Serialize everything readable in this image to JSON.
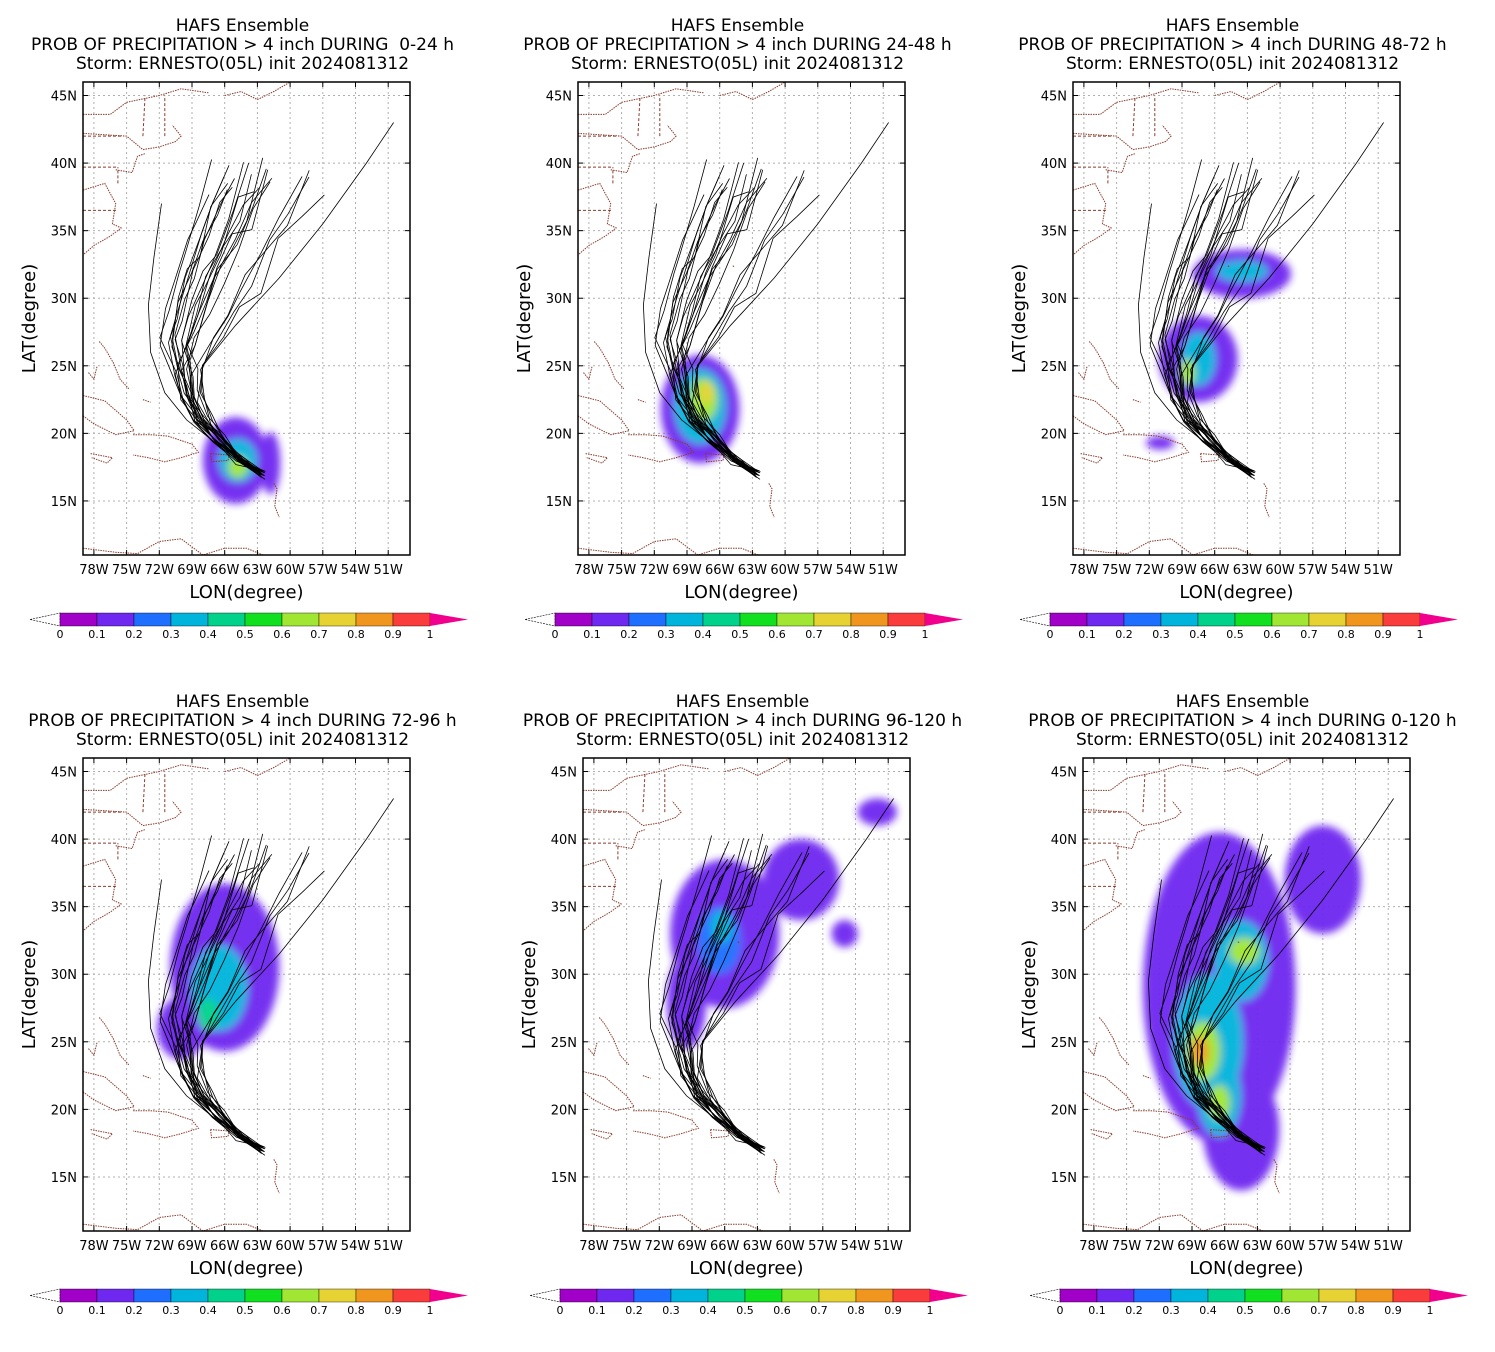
{
  "figure": {
    "colorbar": {
      "ticks": [
        "0",
        "0.1",
        "0.2",
        "0.3",
        "0.4",
        "0.5",
        "0.6",
        "0.7",
        "0.8",
        "0.9",
        "1"
      ],
      "colors": [
        "#a000c8",
        "#6e28f0",
        "#1e6eff",
        "#00b4dc",
        "#00d28c",
        "#10e020",
        "#a0e632",
        "#e6d232",
        "#f0961e",
        "#fa3c3c"
      ],
      "over_color": "#f0008c"
    },
    "coast_color": "#8b3a2a",
    "track_color": "#000000",
    "panels": [
      {
        "title": [
          "HAFS Ensemble",
          "PROB OF PRECIPITATION > 4 inch DURING  0-24 h",
          "Storm: ERNESTO(05L) init 2024081312"
        ],
        "xlabel": "LON(degree)",
        "ylabel": "LAT(degree)",
        "xticks": [
          "78W",
          "75W",
          "72W",
          "69W",
          "66W",
          "63W",
          "60W",
          "57W",
          "54W",
          "51W"
        ],
        "yticks": [
          "15N",
          "20N",
          "25N",
          "30N",
          "35N",
          "40N",
          "45N"
        ],
        "chart_data": {
          "type": "heatmap",
          "field": "probability of precipitation > 4 inch",
          "period_h": [
            0,
            24
          ],
          "xlim": [
            -79,
            -49
          ],
          "ylim": [
            11,
            46
          ],
          "blobs": [
            {
              "lon": -65.0,
              "lat": 18.0,
              "rx": 3.0,
              "ry": 3.2,
              "level": 0.1
            },
            {
              "lon": -64.8,
              "lat": 18.0,
              "rx": 1.8,
              "ry": 1.6,
              "level": 0.3
            },
            {
              "lon": -64.8,
              "lat": 17.5,
              "rx": 0.9,
              "ry": 0.8,
              "level": 0.6
            },
            {
              "lon": -61.8,
              "lat": 17.8,
              "rx": 0.9,
              "ry": 2.3,
              "level": 0.1
            }
          ]
        }
      },
      {
        "title": [
          "HAFS Ensemble",
          "PROB OF PRECIPITATION > 4 inch DURING 24-48 h",
          "Storm: ERNESTO(05L) init 2024081312"
        ],
        "xlabel": "LON(degree)",
        "ylabel": "LAT(degree)",
        "xticks": [
          "78W",
          "75W",
          "72W",
          "69W",
          "66W",
          "63W",
          "60W",
          "57W",
          "54W",
          "51W"
        ],
        "yticks": [
          "15N",
          "20N",
          "25N",
          "30N",
          "35N",
          "40N",
          "45N"
        ],
        "chart_data": {
          "type": "heatmap",
          "field": "probability of precipitation > 4 inch",
          "period_h": [
            24,
            48
          ],
          "xlim": [
            -79,
            -49
          ],
          "ylim": [
            11,
            46
          ],
          "blobs": [
            {
              "lon": -67.8,
              "lat": 21.8,
              "rx": 3.6,
              "ry": 4.0,
              "level": 0.1
            },
            {
              "lon": -67.8,
              "lat": 22.0,
              "rx": 2.4,
              "ry": 2.8,
              "level": 0.3
            },
            {
              "lon": -67.5,
              "lat": 22.5,
              "rx": 1.3,
              "ry": 1.6,
              "level": 0.6
            },
            {
              "lon": -67.2,
              "lat": 23.0,
              "rx": 0.6,
              "ry": 0.8,
              "level": 0.7
            }
          ]
        }
      },
      {
        "title": [
          "HAFS Ensemble",
          "PROB OF PRECIPITATION > 4 inch DURING 48-72 h",
          "Storm: ERNESTO(05L) init 2024081312"
        ],
        "xlabel": "LON(degree)",
        "ylabel": "LAT(degree)",
        "xticks": [
          "78W",
          "75W",
          "72W",
          "69W",
          "66W",
          "63W",
          "60W",
          "57W",
          "54W",
          "51W"
        ],
        "yticks": [
          "15N",
          "20N",
          "25N",
          "30N",
          "35N",
          "40N",
          "45N"
        ],
        "chart_data": {
          "type": "heatmap",
          "field": "probability of precipitation > 4 inch",
          "period_h": [
            48,
            72
          ],
          "xlim": [
            -79,
            -49
          ],
          "ylim": [
            11,
            46
          ],
          "blobs": [
            {
              "lon": -67.5,
              "lat": 25.5,
              "rx": 3.6,
              "ry": 3.2,
              "level": 0.1
            },
            {
              "lon": -63.5,
              "lat": 31.8,
              "rx": 4.5,
              "ry": 1.8,
              "level": 0.1
            },
            {
              "lon": -63.5,
              "lat": 32.0,
              "rx": 2.4,
              "ry": 0.8,
              "level": 0.3
            },
            {
              "lon": -67.5,
              "lat": 25.5,
              "rx": 1.6,
              "ry": 2.0,
              "level": 0.3
            },
            {
              "lon": -68.5,
              "lat": 24.5,
              "rx": 0.7,
              "ry": 1.0,
              "level": 0.6
            },
            {
              "lon": -71.0,
              "lat": 19.3,
              "rx": 1.3,
              "ry": 0.5,
              "level": 0.1
            }
          ]
        }
      },
      {
        "title": [
          "HAFS Ensemble",
          "PROB OF PRECIPITATION > 4 inch DURING 72-96 h",
          "Storm: ERNESTO(05L) init 2024081312"
        ],
        "xlabel": "LON(degree)",
        "ylabel": "LAT(degree)",
        "xticks": [
          "78W",
          "75W",
          "72W",
          "69W",
          "66W",
          "63W",
          "60W",
          "57W",
          "54W",
          "51W"
        ],
        "yticks": [
          "15N",
          "20N",
          "25N",
          "30N",
          "35N",
          "40N",
          "45N"
        ],
        "chart_data": {
          "type": "heatmap",
          "field": "probability of precipitation > 4 inch",
          "period_h": [
            72,
            96
          ],
          "xlim": [
            -79,
            -49
          ],
          "ylim": [
            11,
            46
          ],
          "blobs": [
            {
              "lon": -66.0,
              "lat": 30.5,
              "rx": 5.0,
              "ry": 6.2,
              "level": 0.1
            },
            {
              "lon": -70.0,
              "lat": 26.0,
              "rx": 2.2,
              "ry": 2.3,
              "level": 0.1
            },
            {
              "lon": -66.5,
              "lat": 29.0,
              "rx": 2.6,
              "ry": 3.2,
              "level": 0.3
            },
            {
              "lon": -67.5,
              "lat": 27.0,
              "rx": 1.0,
              "ry": 1.2,
              "level": 0.4
            }
          ]
        }
      },
      {
        "title": [
          "HAFS Ensemble",
          "PROB OF PRECIPITATION > 4 inch DURING 96-120 h",
          "Storm: ERNESTO(05L) init 2024081312"
        ],
        "xlabel": "LON(degree)",
        "ylabel": "LAT(degree)",
        "xticks": [
          "78W",
          "75W",
          "72W",
          "69W",
          "66W",
          "63W",
          "60W",
          "57W",
          "54W",
          "51W"
        ],
        "yticks": [
          "15N",
          "20N",
          "25N",
          "30N",
          "35N",
          "40N",
          "45N"
        ],
        "chart_data": {
          "type": "heatmap",
          "field": "probability of precipitation > 4 inch",
          "period_h": [
            96,
            120
          ],
          "xlim": [
            -79,
            -49
          ],
          "ylim": [
            11,
            46
          ],
          "blobs": [
            {
              "lon": -66.0,
              "lat": 33.0,
              "rx": 5.0,
              "ry": 5.5,
              "level": 0.1
            },
            {
              "lon": -59.0,
              "lat": 37.0,
              "rx": 3.5,
              "ry": 3.0,
              "level": 0.1
            },
            {
              "lon": -69.5,
              "lat": 28.0,
              "rx": 1.8,
              "ry": 3.5,
              "level": 0.1
            },
            {
              "lon": -66.5,
              "lat": 32.5,
              "rx": 2.0,
              "ry": 2.5,
              "level": 0.2
            },
            {
              "lon": -66.3,
              "lat": 33.5,
              "rx": 1.0,
              "ry": 1.2,
              "level": 0.3
            },
            {
              "lon": -55.0,
              "lat": 33.0,
              "rx": 1.2,
              "ry": 1.0,
              "level": 0.1
            },
            {
              "lon": -52.0,
              "lat": 42.0,
              "rx": 1.8,
              "ry": 1.0,
              "level": 0.1
            }
          ]
        }
      },
      {
        "title": [
          "HAFS Ensemble",
          "PROB OF PRECIPITATION > 4 inch DURING 0-120 h",
          "Storm: ERNESTO(05L) init 2024081312"
        ],
        "xlabel": "LON(degree)",
        "ylabel": "LAT(degree)",
        "xticks": [
          "78W",
          "75W",
          "72W",
          "69W",
          "66W",
          "63W",
          "60W",
          "57W",
          "54W",
          "51W"
        ],
        "yticks": [
          "15N",
          "20N",
          "25N",
          "30N",
          "35N",
          "40N",
          "45N"
        ],
        "chart_data": {
          "type": "heatmap",
          "field": "probability of precipitation > 4 inch",
          "period_h": [
            0,
            120
          ],
          "xlim": [
            -79,
            -49
          ],
          "ylim": [
            11,
            46
          ],
          "blobs": [
            {
              "lon": -66.5,
              "lat": 29.0,
              "rx": 7.0,
              "ry": 11.5,
              "level": 0.1
            },
            {
              "lon": -64.5,
              "lat": 18.5,
              "rx": 3.5,
              "ry": 4.5,
              "level": 0.1
            },
            {
              "lon": -57.0,
              "lat": 37.0,
              "rx": 3.5,
              "ry": 4.0,
              "level": 0.1
            },
            {
              "lon": -67.5,
              "lat": 25.0,
              "rx": 3.2,
              "ry": 5.0,
              "level": 0.3
            },
            {
              "lon": -64.5,
              "lat": 31.0,
              "rx": 2.5,
              "ry": 3.0,
              "level": 0.3
            },
            {
              "lon": -66.5,
              "lat": 21.0,
              "rx": 2.0,
              "ry": 3.0,
              "level": 0.3
            },
            {
              "lon": -68.0,
              "lat": 24.3,
              "rx": 1.6,
              "ry": 2.2,
              "level": 0.6
            },
            {
              "lon": -64.2,
              "lat": 31.7,
              "rx": 1.4,
              "ry": 1.0,
              "level": 0.6
            },
            {
              "lon": -66.5,
              "lat": 20.5,
              "rx": 1.0,
              "ry": 1.3,
              "level": 0.6
            },
            {
              "lon": -68.3,
              "lat": 24.3,
              "rx": 0.8,
              "ry": 1.1,
              "level": 0.8
            }
          ]
        }
      }
    ]
  }
}
